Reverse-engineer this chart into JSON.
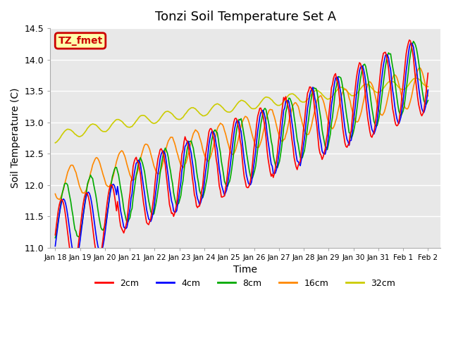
{
  "title": "Tonzi Soil Temperature Set A",
  "xlabel": "Time",
  "ylabel": "Soil Temperature (C)",
  "ylim": [
    11.0,
    14.5
  ],
  "legend_labels": [
    "2cm",
    "4cm",
    "8cm",
    "16cm",
    "32cm"
  ],
  "legend_colors": [
    "#ff0000",
    "#0000ff",
    "#00aa00",
    "#ff8800",
    "#cccc00"
  ],
  "annotation_text": "TZ_fmet",
  "annotation_bg": "#ffffaa",
  "annotation_border": "#cc0000",
  "bg_color": "#ffffff",
  "plot_bg_color": "#e8e8e8",
  "grid_color": "#ffffff",
  "tick_labels": [
    "Jan 18",
    "Jan 19",
    "Jan 20",
    "Jan 21",
    "Jan 22",
    "Jan 23",
    "Jan 24",
    "Jan 25",
    "Jan 26",
    "Jan 27",
    "Jan 28",
    "Jan 29",
    "Jan 30",
    "Jan 31",
    "Feb 1",
    "Feb 2"
  ],
  "num_points": 360
}
